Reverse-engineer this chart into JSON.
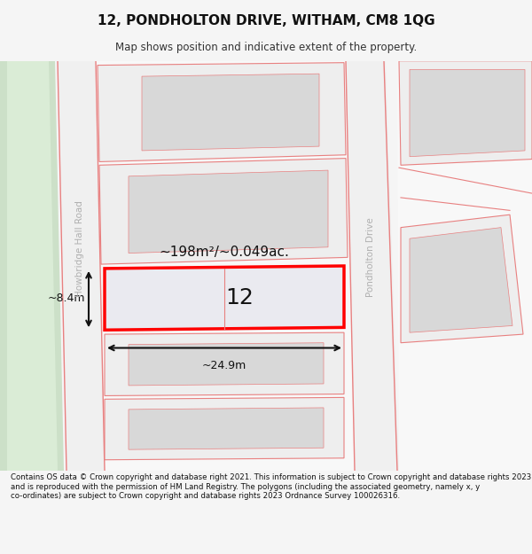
{
  "title": "12, PONDHOLTON DRIVE, WITHAM, CM8 1QG",
  "subtitle": "Map shows position and indicative extent of the property.",
  "footer": "Contains OS data © Crown copyright and database right 2021. This information is subject to Crown copyright and database rights 2023 and is reproduced with the permission of HM Land Registry. The polygons (including the associated geometry, namely x, y co-ordinates) are subject to Crown copyright and database rights 2023 Ordnance Survey 100026316.",
  "bg_color": "#f5f5f5",
  "map_bg": "#ffffff",
  "road_line_color": "#e88080",
  "highlight_border": "#ff0000",
  "area_label": "~198m²/~0.049ac.",
  "width_label": "~24.9m",
  "height_label": "~8.4m",
  "house_number": "12",
  "street1": "Howbridge Hall Road",
  "street2": "Pondholton Drive"
}
